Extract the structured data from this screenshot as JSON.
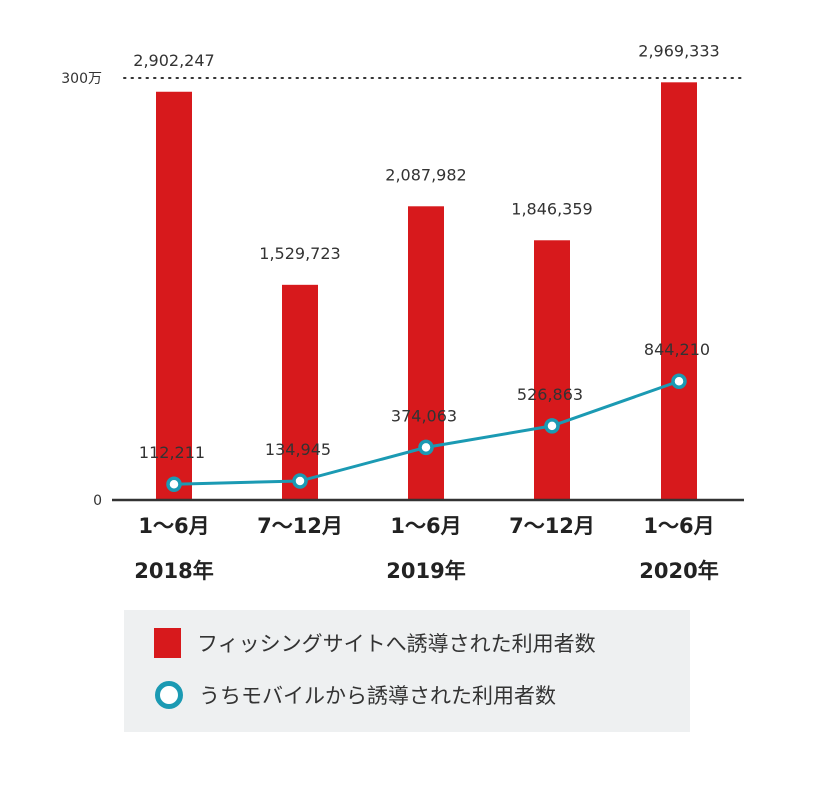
{
  "chart_data": {
    "type": "bar",
    "categories": [
      "1〜6月",
      "7〜12月",
      "1〜6月",
      "7〜12月",
      "1〜6月"
    ],
    "years": [
      "2018年",
      "",
      "2019年",
      "",
      "2020年"
    ],
    "series": [
      {
        "name": "フィッシングサイトへ誘導された利用者数",
        "kind": "bar",
        "color": "#d7191c",
        "values": [
          2902247,
          1529723,
          2087982,
          1846359,
          2969333
        ],
        "labels": [
          "2,902,247",
          "1,529,723",
          "2,087,982",
          "1,846,359",
          "2,969,333"
        ]
      },
      {
        "name": "うちモバイルから誘導された利用者数",
        "kind": "line",
        "color": "#1b9ab3",
        "values": [
          112211,
          134945,
          374063,
          526863,
          844210
        ],
        "labels": [
          "112,211",
          "134,945",
          "374,063",
          "526,863",
          "844,210"
        ]
      }
    ],
    "ylim": [
      0,
      3000000
    ],
    "y_ticks": [
      {
        "value": 0,
        "label": "0"
      },
      {
        "value": 3000000,
        "label": "300万"
      }
    ],
    "reference_line": {
      "value": 3000000,
      "style": "dotted"
    },
    "legend_position": "bottom"
  }
}
